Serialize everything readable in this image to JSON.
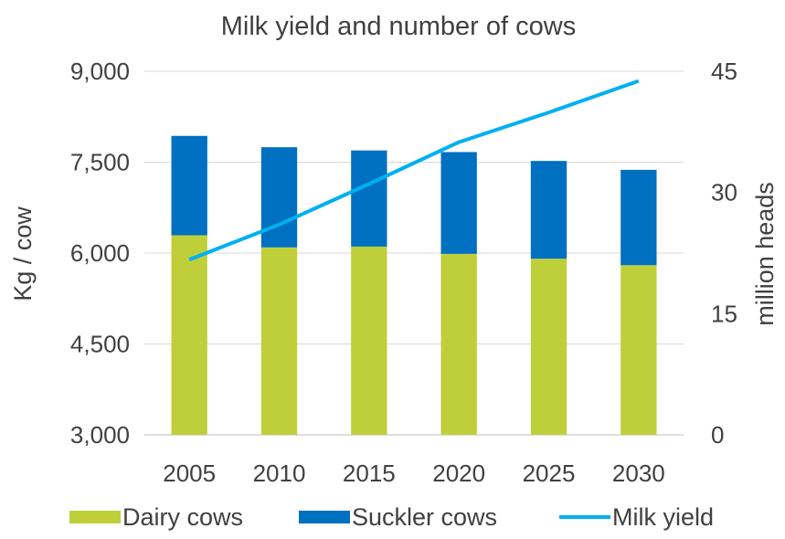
{
  "chart_data": {
    "type": "bar",
    "title": "Milk yield and number of cows",
    "ylabel": "Kg / cow",
    "y2label": "million heads",
    "categories": [
      "2005",
      "2010",
      "2015",
      "2020",
      "2025",
      "2030"
    ],
    "ylim": [
      3000,
      9000
    ],
    "y2lim": [
      0,
      45
    ],
    "yticks": [
      "3,000",
      "4,500",
      "6,000",
      "7,500",
      "9,000"
    ],
    "y2ticks": [
      "0",
      "15",
      "30",
      "45"
    ],
    "series": [
      {
        "name": "Dairy cows",
        "type": "bar",
        "axis": "right",
        "stacked": true,
        "color": "#bfcf3a",
        "values": [
          24.7,
          23.2,
          23.3,
          22.4,
          21.8,
          21.0
        ]
      },
      {
        "name": "Suckler cows",
        "type": "bar",
        "axis": "right",
        "stacked": true,
        "color": "#0070c0",
        "values": [
          12.3,
          12.4,
          11.9,
          12.6,
          12.1,
          11.8
        ]
      },
      {
        "name": "Milk yield",
        "type": "line",
        "axis": "left",
        "color": "#00b0f0",
        "values": [
          5890,
          6470,
          7140,
          7830,
          8320,
          8840
        ]
      }
    ],
    "grid": true,
    "legend": "bottom"
  }
}
